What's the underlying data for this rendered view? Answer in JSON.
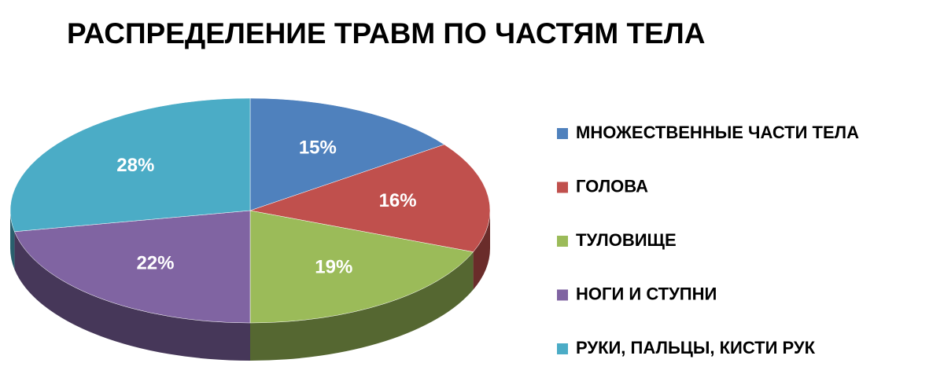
{
  "chart_data": {
    "type": "pie",
    "title": "РАСПРЕДЕЛЕНИЕ ТРАВМ ПО ЧАСТЯМ ТЕЛА",
    "categories": [
      "МНОЖЕСТВЕННЫЕ ЧАСТИ ТЕЛА",
      "ГОЛОВА",
      "ТУЛОВИЩЕ",
      "НОГИ И СТУПНИ",
      "РУКИ, ПАЛЬЦЫ, КИСТИ РУК"
    ],
    "values": [
      15,
      16,
      19,
      22,
      28
    ],
    "value_labels": [
      "15%",
      "16%",
      "19%",
      "22%",
      "28%"
    ],
    "colors": [
      "#4f81bd",
      "#c0504d",
      "#9bbb59",
      "#8064a2",
      "#4bacc6"
    ],
    "legend": "right"
  }
}
